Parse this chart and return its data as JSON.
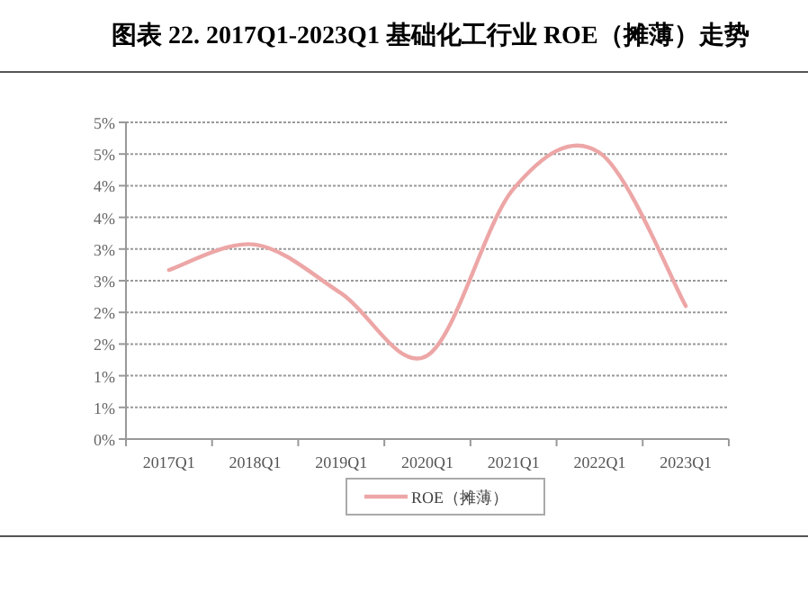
{
  "chart_data": {
    "type": "line",
    "title": "图表 22. 2017Q1-2023Q1 基础化工行业 ROE（摊薄）走势",
    "categories": [
      "2017Q1",
      "2018Q1",
      "2019Q1",
      "2020Q1",
      "2021Q1",
      "2022Q1",
      "2023Q1"
    ],
    "series": [
      {
        "name": "ROE（摊薄）",
        "color": "#eda6a6",
        "values": [
          2.67,
          3.07,
          2.3,
          1.32,
          3.95,
          4.52,
          2.1
        ]
      }
    ],
    "ylim": [
      0,
      5
    ],
    "yticks": [
      {
        "value": 0,
        "label": "0%"
      },
      {
        "value": 0.5,
        "label": "1%"
      },
      {
        "value": 1,
        "label": "1%"
      },
      {
        "value": 1.5,
        "label": "2%"
      },
      {
        "value": 2,
        "label": "2%"
      },
      {
        "value": 2.5,
        "label": "3%"
      },
      {
        "value": 3,
        "label": "3%"
      },
      {
        "value": 3.5,
        "label": "4%"
      },
      {
        "value": 4,
        "label": "4%"
      },
      {
        "value": 4.5,
        "label": "5%"
      },
      {
        "value": 5,
        "label": "5%"
      }
    ],
    "grid": "y",
    "legend": "bottom",
    "marker": "none",
    "line_style": "solid"
  }
}
